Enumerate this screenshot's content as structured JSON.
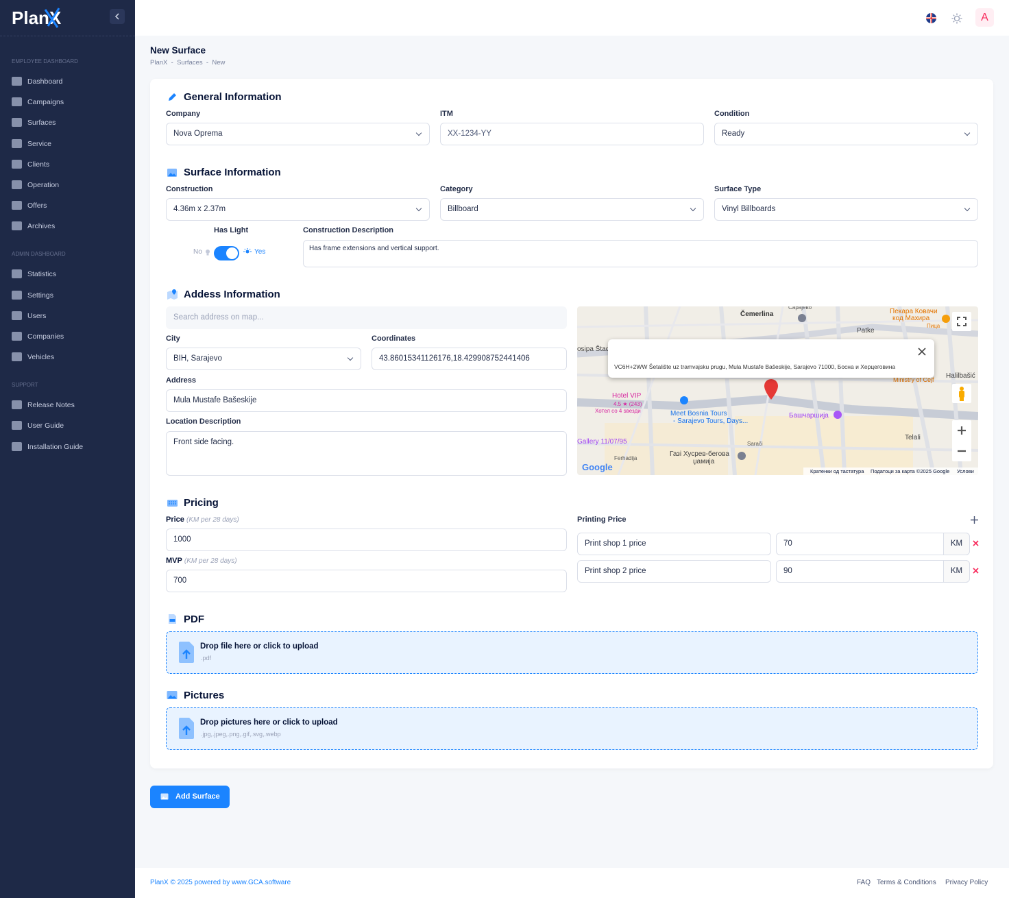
{
  "brand": "PlanX",
  "sidebar": [
    {
      "title": "EMPLOYEE DASHBOARD",
      "items": [
        "Dashboard",
        "Campaigns",
        "Surfaces",
        "Service",
        "Clients",
        "Operation",
        "Offers",
        "Archives"
      ]
    },
    {
      "title": "ADMIN DASHBOARD",
      "items": [
        "Statistics",
        "Settings",
        "Users",
        "Companies",
        "Vehicles"
      ]
    },
    {
      "title": "SUPPORT",
      "items": [
        "Release Notes",
        "User Guide",
        "Installation Guide"
      ]
    }
  ],
  "header": {
    "avatar": "A"
  },
  "page": {
    "title": "New Surface",
    "breadcrumb": [
      "PlanX",
      "Surfaces",
      "New"
    ]
  },
  "general": {
    "title": "General Information",
    "fields": [
      {
        "label": "Company",
        "value": "Nova Oprema"
      },
      {
        "label": "ITM",
        "value": "XX-1234-YY"
      },
      {
        "label": "Condition",
        "value": "Ready"
      }
    ]
  },
  "surface": {
    "title": "Surface Information",
    "fields": [
      {
        "label": "Construction",
        "value": "4.36m x 2.37m"
      },
      {
        "label": "Category",
        "value": "Billboard"
      },
      {
        "label": "Surface Type",
        "value": "Vinyl Billboards"
      }
    ],
    "has_light": {
      "label": "Has Light",
      "off": "No",
      "on": "Yes"
    },
    "description": {
      "label": "Construction Description",
      "value": "Has frame extensions and vertical support."
    }
  },
  "address": {
    "title": "Addess Information",
    "search_placeholder": "Search address on map...",
    "city": {
      "label": "City",
      "value": "BIH, Sarajevo"
    },
    "coordinates": {
      "label": "Coordinates",
      "value": "43.86015341126176,18.429908752441406"
    },
    "address": {
      "label": "Address",
      "value": "Mula Mustafe Bašeskije"
    },
    "location_description": {
      "label": "Location Description",
      "value": "Front side facing."
    }
  },
  "map": {
    "popup": "VC6H+2WW Šetalište uz tramvajsku prugu, Mula Mustafe Bašeskije, Sarajevo 71000, Босна и Херцеговина",
    "labels": [
      "Čemerlina",
      "Patke",
      "Пекара Ковачи",
      "код Махира",
      "Пица",
      "Hotel VIP",
      "4.5 ★ (243)",
      "Хотел со 4 ѕвезди",
      "Meet Bosnia Tours",
      "- Sarajevo Tours, Days...",
      "Башчаршија",
      "Gallery 11/07/95",
      "Газі Хусрев-бегова",
      "џамија",
      "Ministry of Ćejf",
      "Sarači",
      "Ferhadija",
      "Telali",
      "Halilbašić",
      "Сарајево",
      "osipa Štad"
    ],
    "logo": "Google",
    "footer": [
      "Кратенки од тастатура",
      "Податоци за карта ©2025 Google",
      "Услови"
    ]
  },
  "pricing": {
    "title": "Pricing",
    "price": {
      "label": "Price",
      "unit": "(KM per 28 days)",
      "value": 1000
    },
    "mvp": {
      "label": "MVP",
      "unit": "(KM per 28 days)",
      "value": 700
    },
    "printing": {
      "label": "Printing Price",
      "rows": [
        {
          "name": "Print shop 1 price",
          "value": 70,
          "currency": "KM"
        },
        {
          "name": "Print shop 2 price",
          "value": 90,
          "currency": "KM"
        }
      ]
    }
  },
  "pdf": {
    "title": "PDF",
    "drop": "Drop file here or click to upload",
    "accept": ".pdf"
  },
  "pictures": {
    "title": "Pictures",
    "drop": "Drop pictures here or click to upload",
    "accept": ".jpg,.jpeg,.png,.gif,.svg,.webp"
  },
  "submit": "Add Surface",
  "footer": {
    "copyright": "PlanX © 2025 powered by www.GCA.software",
    "links": [
      "FAQ",
      "Terms & Conditions",
      "Privacy Policy"
    ]
  }
}
